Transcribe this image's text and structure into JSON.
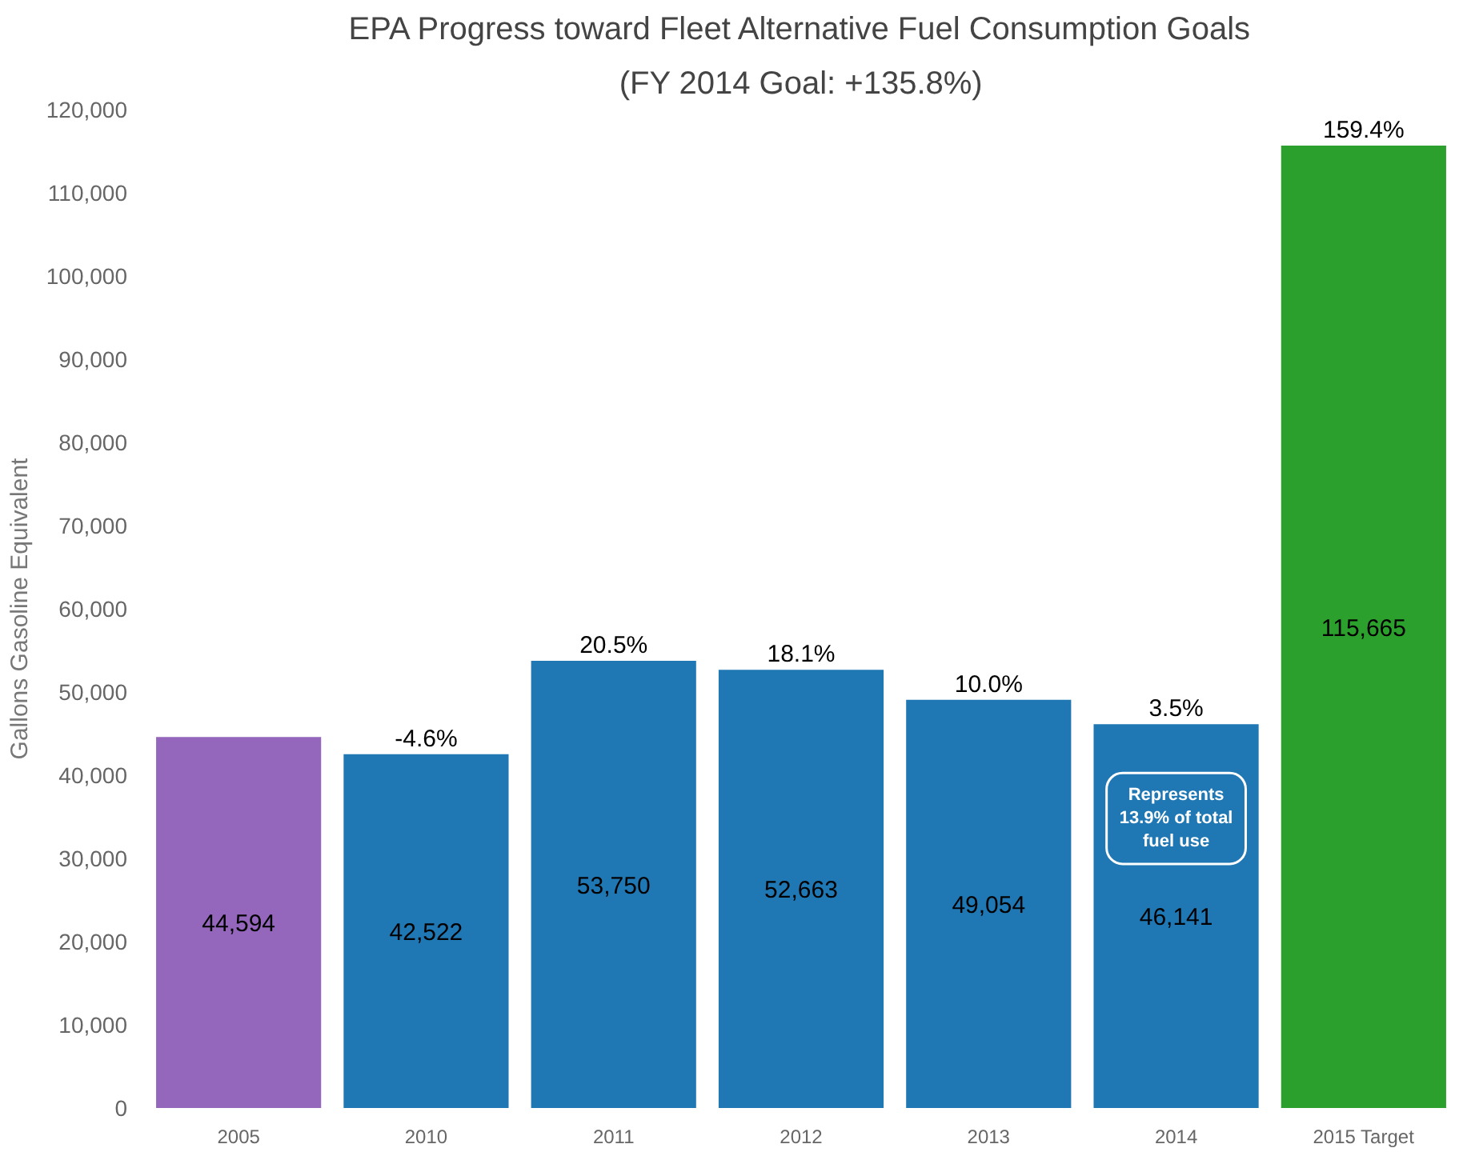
{
  "chart_data": {
    "type": "bar",
    "title": "EPA Progress toward Fleet Alternative Fuel Consumption Goals",
    "subtitle": "(FY 2014 Goal: +135.8%)",
    "ylabel": "Gallons Gasoline Equivalent",
    "categories": [
      "2005",
      "2010",
      "2011",
      "2012",
      "2013",
      "2014",
      "2015 Target"
    ],
    "values": [
      44594,
      42522,
      53750,
      52663,
      49054,
      46141,
      115665
    ],
    "colors": [
      "#9467bd",
      "#1f77b4",
      "#1f77b4",
      "#1f77b4",
      "#1f77b4",
      "#1f77b4",
      "#2ca02c"
    ],
    "value_labels": [
      "44,594",
      "42,522",
      "53,750",
      "52,663",
      "49,054",
      "46,141",
      "115,665"
    ],
    "annotations": [
      {
        "text": "-4.6%",
        "x": "2010",
        "y": 42522
      },
      {
        "text": "20.5%",
        "x": "2011",
        "y": 53750
      },
      {
        "text": "18.1%",
        "x": "2012",
        "y": 52663
      },
      {
        "text": "10.0%",
        "x": "2013",
        "y": 49054
      },
      {
        "text": "3.5%",
        "x": "2014",
        "y": 46141
      },
      {
        "text": "159.4%",
        "x": "2015 Target",
        "y": 115665
      },
      "Represents\n13.9% of total\nfuel use"
    ],
    "ylim": [
      0,
      120000
    ],
    "yticks": [
      0,
      {
        "value": 10000,
        "label": "10,000"
      },
      {
        "value": 20000,
        "label": "20,000"
      },
      {
        "value": 30000,
        "label": "30,000"
      },
      {
        "value": 40000,
        "label": "40,000"
      },
      {
        "value": 50000,
        "label": "50,000"
      },
      {
        "value": 60000,
        "label": "60,000"
      },
      {
        "value": 70000,
        "label": "70,000"
      },
      {
        "value": 80000,
        "label": "80,000"
      },
      {
        "value": 90000,
        "label": "90,000"
      },
      {
        "value": 100000,
        "label": "100,000"
      },
      {
        "value": 110000,
        "label": "110,000"
      },
      {
        "value": 120000,
        "label": "120,000"
      }
    ],
    "grid": false
  }
}
